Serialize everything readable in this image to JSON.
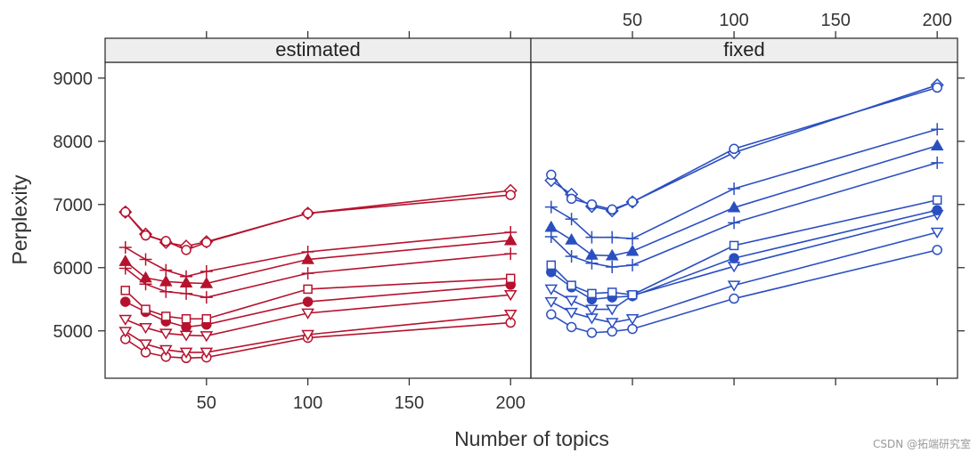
{
  "watermark": "CSDN @拓端研究室",
  "chart_data": {
    "type": "line",
    "xlabel": "Number of topics",
    "ylabel": "Perplexity",
    "xlim": [
      0,
      210
    ],
    "ylim": [
      4250,
      9250
    ],
    "x_ticks": [
      50,
      100,
      150,
      200
    ],
    "y_ticks": [
      5000,
      6000,
      7000,
      8000,
      9000
    ],
    "x": [
      10,
      20,
      30,
      40,
      50,
      100,
      200
    ],
    "grid": false,
    "panels": [
      {
        "name": "estimated",
        "color": "#b5122e",
        "series": [
          {
            "marker": "circle-open",
            "values": [
              4870,
              4660,
              4590,
              4570,
              4580,
              4890,
              5130
            ]
          },
          {
            "marker": "triangle-down-open",
            "values": [
              4990,
              4790,
              4700,
              4660,
              4660,
              4940,
              5260
            ]
          },
          {
            "marker": "triangle-down-open",
            "values": [
              5180,
              5050,
              4960,
              4930,
              4920,
              5280,
              5570
            ]
          },
          {
            "marker": "circle-filled",
            "values": [
              5460,
              5300,
              5150,
              5060,
              5100,
              5460,
              5730
            ]
          },
          {
            "marker": "square-open",
            "values": [
              5640,
              5340,
              5230,
              5190,
              5190,
              5660,
              5830
            ]
          },
          {
            "marker": "plus",
            "values": [
              5990,
              5740,
              5620,
              5590,
              5530,
              5910,
              6220
            ]
          },
          {
            "marker": "triangle-filled",
            "values": [
              6100,
              5840,
              5780,
              5760,
              5750,
              6130,
              6430
            ]
          },
          {
            "marker": "plus",
            "values": [
              6320,
              6130,
              5960,
              5860,
              5940,
              6250,
              6560
            ]
          },
          {
            "marker": "diamond-open",
            "values": [
              6880,
              6530,
              6400,
              6340,
              6410,
              6860,
              7220
            ]
          },
          {
            "marker": "circle-open",
            "values": [
              6880,
              6510,
              6420,
              6280,
              6400,
              6860,
              7150
            ]
          }
        ]
      },
      {
        "name": "fixed",
        "color": "#2a4fc0",
        "series": [
          {
            "marker": "circle-open",
            "values": [
              5260,
              5060,
              4970,
              4990,
              5030,
              5510,
              6280
            ]
          },
          {
            "marker": "triangle-down-open",
            "values": [
              5460,
              5290,
              5200,
              5130,
              5190,
              5720,
              6560
            ]
          },
          {
            "marker": "triangle-down-open",
            "values": [
              5660,
              5480,
              5340,
              5340,
              5560,
              6020,
              6840
            ]
          },
          {
            "marker": "circle-filled",
            "values": [
              5930,
              5690,
              5500,
              5530,
              5550,
              6150,
              6910
            ]
          },
          {
            "marker": "square-open",
            "values": [
              6040,
              5720,
              5590,
              5610,
              5570,
              6350,
              7070
            ]
          },
          {
            "marker": "plus",
            "values": [
              6490,
              6180,
              6070,
              6010,
              6040,
              6710,
              7660
            ]
          },
          {
            "marker": "triangle-filled",
            "values": [
              6640,
              6440,
              6200,
              6190,
              6260,
              6950,
              7930
            ]
          },
          {
            "marker": "plus",
            "values": [
              6960,
              6770,
              6480,
              6480,
              6460,
              7250,
              8190
            ]
          },
          {
            "marker": "diamond-open",
            "values": [
              7380,
              7160,
              6970,
              6900,
              7040,
              7820,
              8890
            ]
          },
          {
            "marker": "circle-open",
            "values": [
              7470,
              7090,
              7000,
              6920,
              7040,
              7880,
              8850
            ]
          }
        ]
      }
    ]
  }
}
